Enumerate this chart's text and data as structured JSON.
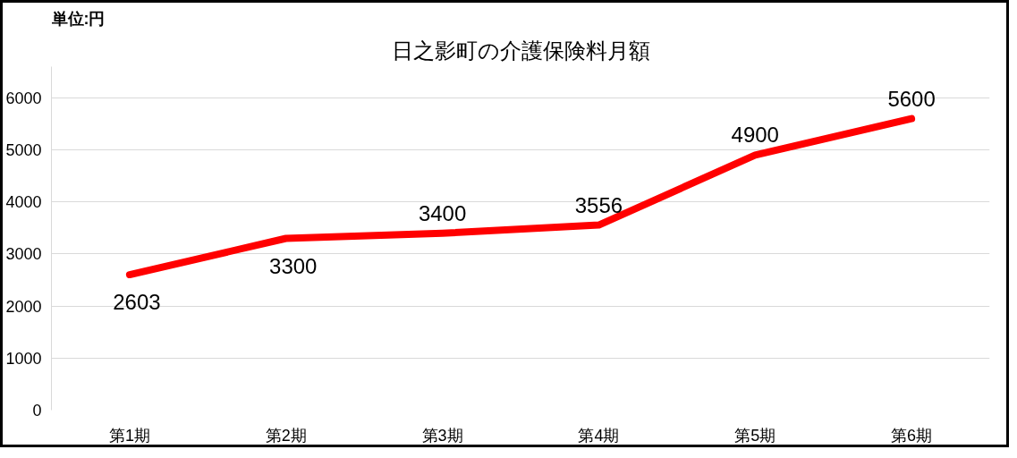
{
  "chart_data": {
    "type": "line",
    "title": "日之影町の介護保険料月額",
    "ylabel": "単位:円",
    "categories": [
      "第1期",
      "第2期",
      "第3期",
      "第4期",
      "第5期",
      "第6期"
    ],
    "series": [
      {
        "color": "#ff0000",
        "values": [
          2603,
          3300,
          3400,
          3556,
          4900,
          5600
        ]
      }
    ],
    "ylim": [
      0,
      6600
    ],
    "yticks": [
      0,
      1000,
      2000,
      3000,
      4000,
      5000,
      6000
    ],
    "grid": "y",
    "data_labels": true,
    "marker": "none",
    "line_style": "solid"
  }
}
